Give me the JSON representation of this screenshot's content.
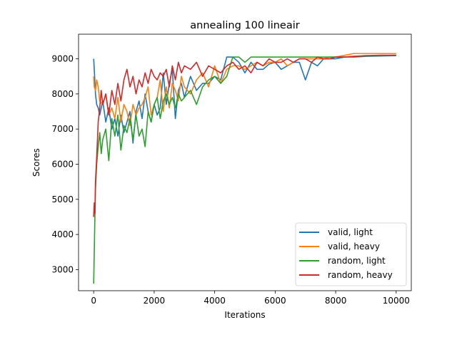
{
  "chart_data": {
    "type": "line",
    "title": "annealing 100 lineair",
    "xlabel": "Iterations",
    "ylabel": "Scores",
    "xlim": [
      -500,
      10500
    ],
    "ylim": [
      2400,
      9700
    ],
    "xticks": [
      0,
      2000,
      4000,
      6000,
      8000,
      10000
    ],
    "xtick_labels": [
      "0",
      "2000",
      "4000",
      "6000",
      "8000",
      "10000"
    ],
    "yticks": [
      3000,
      4000,
      5000,
      6000,
      7000,
      8000,
      9000
    ],
    "ytick_labels": [
      "3000",
      "4000",
      "5000",
      "6000",
      "7000",
      "8000",
      "9000"
    ],
    "grid": false,
    "legend_position": "lower-right",
    "series": [
      {
        "name": "valid, light",
        "color": "#1f77b4",
        "x": [
          0,
          20,
          60,
          100,
          150,
          200,
          300,
          400,
          500,
          600,
          700,
          800,
          900,
          1000,
          1100,
          1200,
          1300,
          1400,
          1500,
          1600,
          1700,
          1800,
          1900,
          2000,
          2100,
          2200,
          2300,
          2400,
          2500,
          2600,
          2700,
          2800,
          2900,
          3000,
          3200,
          3400,
          3600,
          3800,
          4000,
          4200,
          4400,
          4600,
          4800,
          5000,
          5200,
          5400,
          5600,
          5800,
          6000,
          6200,
          6400,
          6600,
          6800,
          7000,
          7200,
          7400,
          7600,
          7800,
          8000,
          8300,
          8600,
          9000,
          9500,
          10000
        ],
        "values": [
          9000,
          8700,
          8000,
          7700,
          7600,
          7400,
          7800,
          7200,
          7600,
          7000,
          7300,
          6800,
          7400,
          6900,
          7200,
          7500,
          6600,
          7500,
          7800,
          7300,
          8000,
          7500,
          7200,
          7700,
          7400,
          7600,
          8600,
          7700,
          8300,
          8700,
          7300,
          8100,
          8300,
          7900,
          8500,
          8100,
          8300,
          8300,
          8500,
          8400,
          9050,
          9050,
          8900,
          8600,
          8900,
          8700,
          8700,
          8850,
          8900,
          8700,
          8800,
          8900,
          8900,
          8400,
          8900,
          8800,
          9000,
          9000,
          9000,
          9050,
          9050,
          9070,
          9080,
          9090
        ]
      },
      {
        "name": "valid, heavy",
        "color": "#ff7f0e",
        "x": [
          0,
          20,
          60,
          100,
          150,
          200,
          300,
          400,
          500,
          600,
          700,
          800,
          900,
          1000,
          1100,
          1200,
          1300,
          1400,
          1500,
          1600,
          1700,
          1800,
          1900,
          2000,
          2100,
          2200,
          2300,
          2400,
          2500,
          2600,
          2700,
          2800,
          2900,
          3000,
          3200,
          3400,
          3600,
          3800,
          4000,
          4200,
          4400,
          4600,
          4800,
          5000,
          5200,
          5400,
          5600,
          5800,
          6000,
          6200,
          6400,
          6600,
          6800,
          7000,
          7200,
          7400,
          7600,
          7800,
          8000,
          8300,
          8600,
          9000,
          9500,
          10000
        ],
        "values": [
          8500,
          8200,
          8100,
          8400,
          8200,
          7800,
          7700,
          8000,
          7400,
          7600,
          7300,
          7900,
          7200,
          7700,
          7500,
          7100,
          7700,
          7400,
          7600,
          7700,
          7900,
          8200,
          7400,
          7700,
          7900,
          8400,
          7500,
          8200,
          7600,
          8300,
          8100,
          7800,
          8500,
          8200,
          8000,
          8400,
          8600,
          8200,
          8800,
          8300,
          8700,
          8800,
          8800,
          8700,
          8800,
          8900,
          8800,
          8900,
          8900,
          9000,
          8800,
          8900,
          9000,
          9000,
          9000,
          9000,
          9000,
          9050,
          9050,
          9100,
          9150,
          9150,
          9150,
          9150
        ]
      },
      {
        "name": "random, light",
        "color": "#2ca02c",
        "x": [
          0,
          20,
          40,
          60,
          100,
          150,
          200,
          250,
          300,
          400,
          500,
          600,
          700,
          800,
          900,
          1000,
          1100,
          1200,
          1300,
          1400,
          1500,
          1600,
          1700,
          1800,
          1900,
          2000,
          2100,
          2200,
          2300,
          2400,
          2500,
          2600,
          2700,
          2800,
          2900,
          3000,
          3200,
          3400,
          3600,
          3800,
          4000,
          4200,
          4400,
          4600,
          4800,
          5000,
          5200,
          5400,
          5600,
          5800,
          6000,
          6200,
          6400,
          6600,
          6800,
          7000,
          7200,
          7400,
          7600,
          7800,
          8000,
          8300,
          8600,
          9000,
          9500,
          10000
        ],
        "values": [
          2600,
          3500,
          4500,
          5300,
          6000,
          6500,
          6900,
          6300,
          6700,
          7000,
          6100,
          7300,
          6800,
          7400,
          6400,
          7100,
          6900,
          7300,
          6700,
          7400,
          6800,
          7000,
          6500,
          7500,
          7200,
          7700,
          7900,
          7300,
          7800,
          8000,
          7700,
          7900,
          7600,
          8000,
          7800,
          7900,
          8100,
          7700,
          8200,
          8400,
          8500,
          8300,
          8500,
          9050,
          9050,
          8900,
          9050,
          9050,
          9050,
          9050,
          9050,
          9050,
          9050,
          9050,
          9050,
          9050,
          9050,
          9050,
          9050,
          9050,
          9050,
          9050,
          9070,
          9080,
          9090,
          9100
        ]
      },
      {
        "name": "random, heavy",
        "color": "#d62728",
        "x": [
          0,
          20,
          40,
          60,
          100,
          150,
          200,
          250,
          300,
          400,
          500,
          600,
          700,
          800,
          900,
          1000,
          1100,
          1200,
          1300,
          1400,
          1500,
          1600,
          1700,
          1800,
          1900,
          2000,
          2100,
          2200,
          2300,
          2400,
          2500,
          2600,
          2700,
          2800,
          2900,
          3000,
          3200,
          3400,
          3600,
          3800,
          4000,
          4200,
          4400,
          4600,
          4800,
          5000,
          5200,
          5400,
          5600,
          5800,
          6000,
          6200,
          6400,
          6600,
          6800,
          7000,
          7200,
          7400,
          7600,
          7800,
          8000,
          8300,
          8600,
          9000,
          9500,
          10000
        ],
        "values": [
          4500,
          4900,
          4600,
          5500,
          6200,
          7200,
          7600,
          8100,
          7700,
          8000,
          7400,
          8100,
          7700,
          8300,
          7800,
          8400,
          8700,
          8200,
          8500,
          8000,
          8400,
          8200,
          8600,
          8300,
          8700,
          8500,
          8400,
          8600,
          8500,
          8700,
          8200,
          8800,
          8400,
          8900,
          8600,
          8800,
          8700,
          8900,
          8500,
          8800,
          8700,
          8600,
          8800,
          8900,
          8700,
          8800,
          8600,
          8900,
          8800,
          9000,
          8900,
          8900,
          9000,
          8900,
          9000,
          9000,
          8900,
          9050,
          9000,
          9000,
          9050,
          9050,
          9070,
          9090,
          9100,
          9100
        ]
      }
    ]
  }
}
